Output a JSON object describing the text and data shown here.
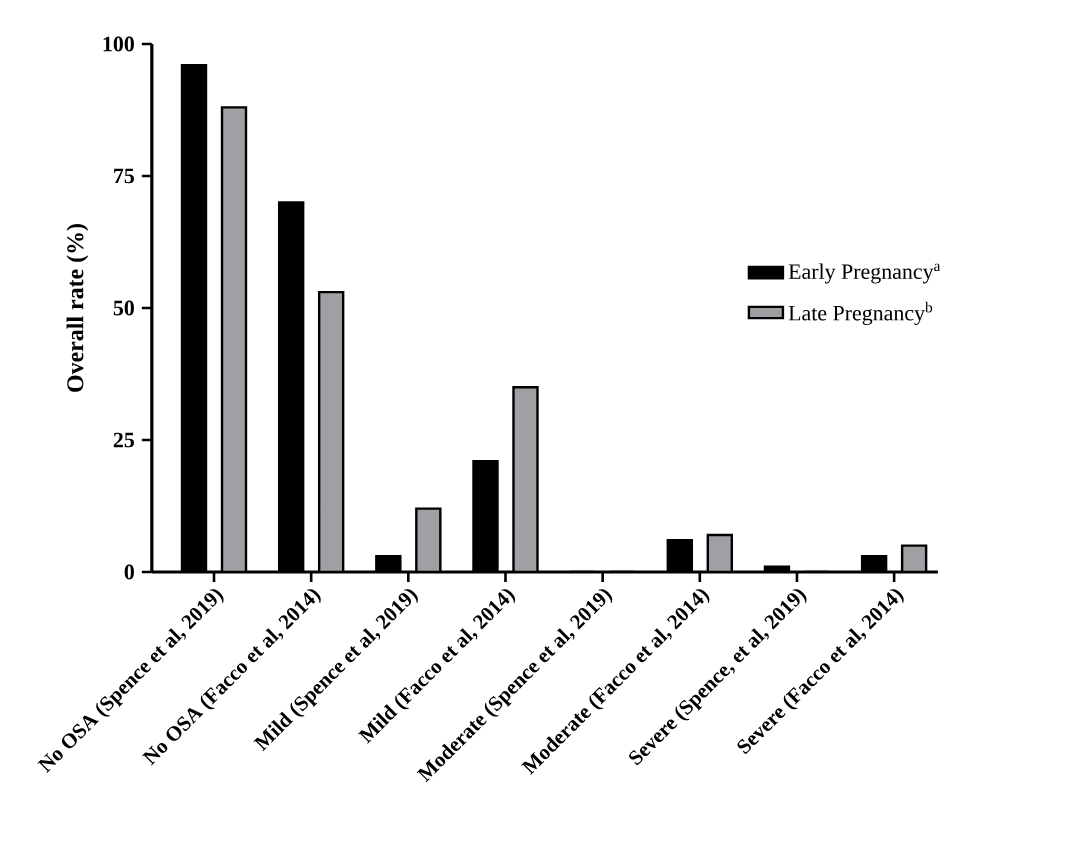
{
  "chart_data": {
    "type": "bar",
    "ylabel": "Overall rate (%)",
    "categories": [
      "No OSA (Spence et al, 2019)",
      "No OSA (Facco et al, 2014)",
      "Mild (Spence et al, 2019)",
      "Mild (Facco et al, 2014)",
      "Moderate (Spence et al, 2019)",
      "Moderate (Facco et al, 2014)",
      "Severe (Spence, et al, 2019)",
      "Severe (Facco et al, 2014)"
    ],
    "series": [
      {
        "name": "Early Pregnancy$^{a}$",
        "color": "#000000",
        "values": [
          96,
          70,
          3,
          21,
          0,
          6,
          1,
          3
        ]
      },
      {
        "name": "Late Pregnancy$^{b}$",
        "color": "#a0a0a4",
        "values": [
          88,
          53,
          12,
          35,
          0,
          7,
          0,
          5
        ]
      }
    ],
    "ylim": [
      0,
      100
    ],
    "yticks": [
      0,
      25,
      50,
      75,
      100
    ],
    "grid": false,
    "legend": "top right"
  }
}
